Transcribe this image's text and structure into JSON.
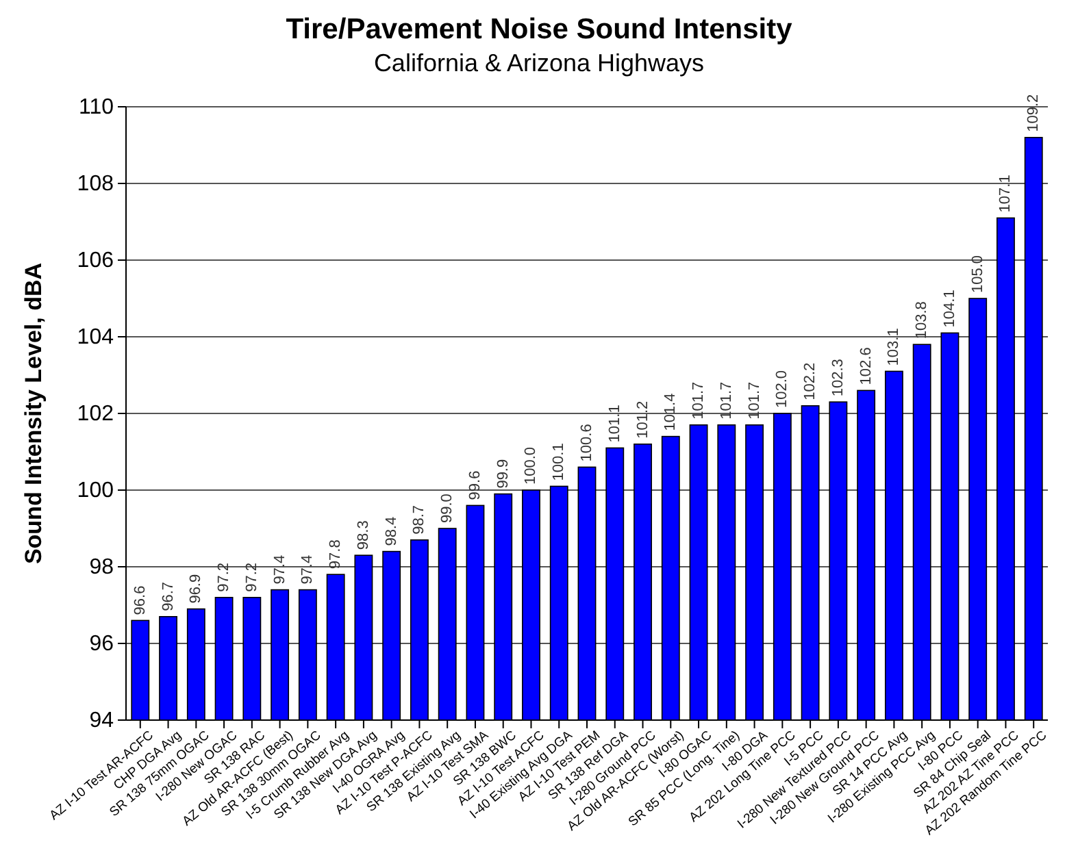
{
  "chart_data": {
    "type": "bar",
    "title": "Tire/Pavement Noise Sound Intensity",
    "subtitle": "California & Arizona Highways",
    "ylabel": "Sound Intensity Level, dBA",
    "categories": [
      "AZ I-10 Test AR-ACFC",
      "CHP DGA Avg",
      "SR 138 75mm OGAC",
      "I-280 New OGAC",
      "SR 138 RAC",
      "AZ Old AR-ACFC (Best)",
      "SR 138 30mm OGAC",
      "I-5 Crumb Rubber Avg",
      "SR 138 New DGA Avg",
      "I-40 OGRA Avg",
      "AZ I-10 Test P-ACFC",
      "SR 138 Existing Avg",
      "AZ I-10 Test SMA",
      "SR 138 BWC",
      "AZ I-10 Test ACFC",
      "I-40 Existing Avg DGA",
      "AZ I-10 Test PEM",
      "SR 138 Ref DGA",
      "I-280 Ground PCC",
      "AZ Old AR-ACFC (Worst)",
      "I-80 OGAC",
      "SR 85 PCC (Long. Tine)",
      "I-80 DGA",
      "AZ 202 Long Tine PCC",
      "I-5 PCC",
      "I-280 New Textured PCC",
      "I-280 New Ground PCC",
      "SR 14 PCC Avg",
      "I-280 Existing PCC Avg",
      "I-80 PCC",
      "SR 84 Chip Seal",
      "AZ 202 AZ Tine PCC",
      "AZ 202 Random Tine PCC"
    ],
    "values": [
      96.6,
      96.7,
      96.9,
      97.2,
      97.2,
      97.4,
      97.4,
      97.8,
      98.3,
      98.4,
      98.7,
      99.0,
      99.6,
      99.9,
      100.0,
      100.1,
      100.6,
      101.1,
      101.2,
      101.4,
      101.7,
      101.7,
      101.7,
      102.0,
      102.2,
      102.3,
      102.6,
      103.1,
      103.8,
      104.1,
      105.0,
      107.1,
      109.2
    ],
    "value_labels": [
      "96.6",
      "96.7",
      "96.9",
      "97.2",
      "97.2",
      "97.4",
      "97.4",
      "97.8",
      "98.3",
      "98.4",
      "98.7",
      "99.0",
      "99.6",
      "99.9",
      "100.0",
      "100.1",
      "100.6",
      "101.1",
      "101.2",
      "101.4",
      "101.7",
      "101.7",
      "101.7",
      "102.0",
      "102.2",
      "102.3",
      "102.6",
      "103.1",
      "103.8",
      "104.1",
      "105.0",
      "107.1",
      "109.2"
    ],
    "color": "#0000ff",
    "ylim": [
      94,
      110
    ],
    "yticks": [
      94,
      96,
      98,
      100,
      102,
      104,
      106,
      108,
      110
    ],
    "grid": "y"
  }
}
